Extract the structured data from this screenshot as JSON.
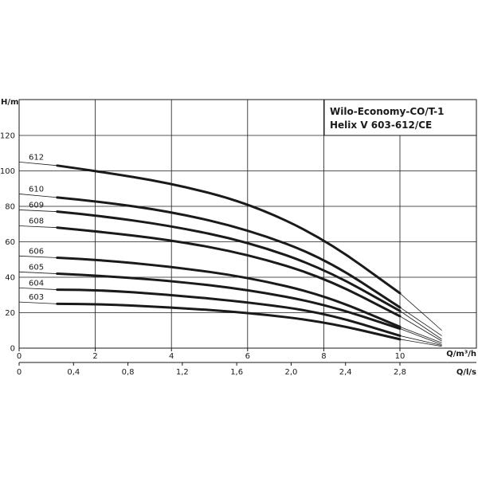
{
  "chart_data": {
    "type": "line",
    "title_lines": [
      "Wilo-Economy-CO/T-1",
      "Helix V 603-612/CE"
    ],
    "ylabel": "H/m",
    "xlabel": "Q/m³/h",
    "xlabel2": "Q/l/s",
    "xlim": [
      0,
      11.5
    ],
    "ylim": [
      0,
      120
    ],
    "xticks": [
      "0",
      "2",
      "4",
      "6",
      "8",
      "10"
    ],
    "xtick_values": [
      0,
      2,
      4,
      6,
      8,
      10
    ],
    "x2ticks": [
      "0",
      "0,4",
      "0,8",
      "1,2",
      "1,6",
      "2,0",
      "2,4",
      "2,8"
    ],
    "x2tick_values": [
      0,
      0.4,
      0.8,
      1.2,
      1.6,
      2.0,
      2.4,
      2.8
    ],
    "yticks": [
      "0",
      "20",
      "40",
      "60",
      "80",
      "100",
      "120"
    ],
    "ytick_values": [
      0,
      20,
      40,
      60,
      80,
      100,
      120
    ],
    "grid": true,
    "series": [
      {
        "name": "612",
        "shutoff": 105,
        "operating": {
          "x": [
            1,
            2,
            4,
            6,
            8,
            10
          ],
          "y": [
            103,
            100,
            93,
            82,
            62,
            31
          ]
        },
        "end": [
          11.1,
          10
        ]
      },
      {
        "name": "610",
        "shutoff": 87,
        "operating": {
          "x": [
            1,
            2,
            4,
            6,
            8,
            10
          ],
          "y": [
            85,
            83,
            77,
            67,
            51,
            23
          ]
        },
        "end": [
          11.1,
          7
        ]
      },
      {
        "name": "609",
        "shutoff": 78,
        "operating": {
          "x": [
            1,
            2,
            4,
            6,
            8,
            10
          ],
          "y": [
            77,
            75,
            69,
            60,
            45,
            21
          ]
        },
        "end": [
          11.1,
          5
        ]
      },
      {
        "name": "608",
        "shutoff": 69,
        "operating": {
          "x": [
            1,
            2,
            4,
            6,
            8,
            10
          ],
          "y": [
            68,
            66,
            61,
            53,
            40,
            18
          ]
        },
        "end": [
          11.1,
          4
        ]
      },
      {
        "name": "606",
        "shutoff": 52,
        "operating": {
          "x": [
            1,
            2,
            4,
            6,
            8,
            10
          ],
          "y": [
            51,
            50,
            46,
            40,
            30,
            12
          ]
        },
        "end": [
          11.1,
          3
        ]
      },
      {
        "name": "605",
        "shutoff": 43,
        "operating": {
          "x": [
            1,
            2,
            4,
            6,
            8,
            10
          ],
          "y": [
            42,
            41,
            38,
            33,
            25,
            11
          ]
        },
        "end": [
          11.1,
          2
        ]
      },
      {
        "name": "604",
        "shutoff": 34,
        "operating": {
          "x": [
            1,
            2,
            4,
            6,
            8,
            10
          ],
          "y": [
            33,
            33,
            30,
            26,
            20,
            7
          ]
        },
        "end": [
          11.1,
          1.5
        ]
      },
      {
        "name": "603",
        "shutoff": 26,
        "operating": {
          "x": [
            1,
            2,
            4,
            6,
            8,
            10
          ],
          "y": [
            25,
            25,
            23,
            20,
            15,
            5
          ]
        },
        "end": [
          11.1,
          1
        ]
      }
    ]
  }
}
